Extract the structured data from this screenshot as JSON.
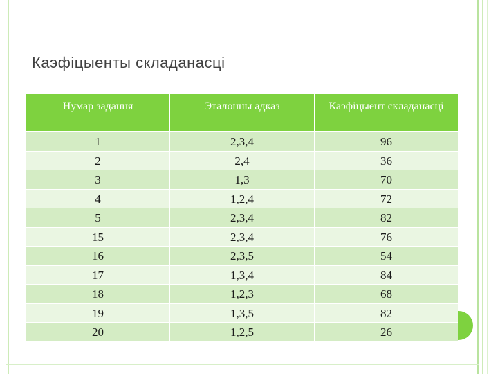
{
  "slide": {
    "title": "Каэфіцыенты складанасці"
  },
  "table": {
    "headers": [
      "Нумар задання",
      "Эталонны адказ",
      "Каэфіцыент складанасці"
    ],
    "rows": [
      [
        "1",
        "2,3,4",
        "96"
      ],
      [
        "2",
        "2,4",
        "36"
      ],
      [
        "3",
        "1,3",
        "70"
      ],
      [
        "4",
        "1,2,4",
        "72"
      ],
      [
        "5",
        "2,3,4",
        "82"
      ],
      [
        "15",
        "2,3,4",
        "76"
      ],
      [
        "16",
        "2,3,5",
        "54"
      ],
      [
        "17",
        "1,3,4",
        "84"
      ],
      [
        "18",
        "1,2,3",
        "68"
      ],
      [
        "19",
        "1,3,5",
        "82"
      ],
      [
        "20",
        "1,2,5",
        "26"
      ]
    ]
  },
  "colors": {
    "accent": "#7ed23f",
    "row_odd": "#d4ecc4",
    "row_even": "#eaf6e2"
  }
}
